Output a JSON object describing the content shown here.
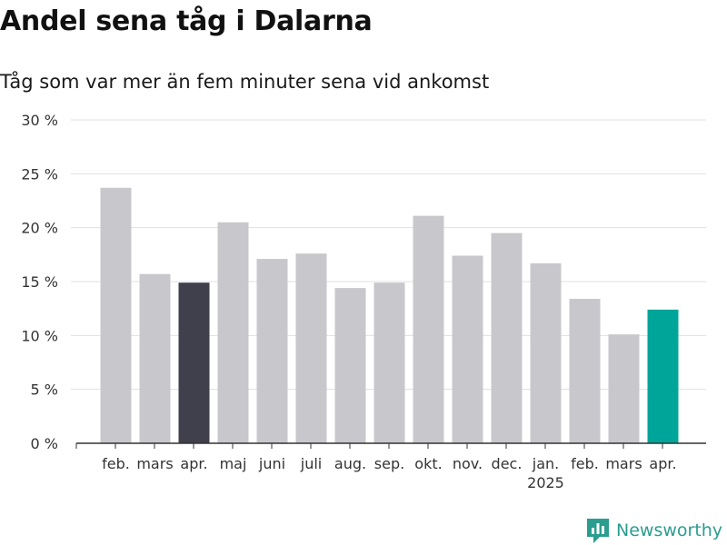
{
  "chart_data": {
    "type": "bar",
    "title": "Andel sena tåg i Dalarna",
    "subtitle": "Tåg som var mer än fem minuter sena vid ankomst",
    "categories": [
      "feb.",
      "mars",
      "apr.",
      "maj",
      "juni",
      "juli",
      "aug.",
      "sep.",
      "okt.",
      "nov.",
      "dec.",
      "jan.",
      "feb.",
      "mars",
      "apr."
    ],
    "year_labels": [
      "",
      "",
      "",
      "",
      "",
      "",
      "",
      "",
      "",
      "",
      "",
      "2025",
      "",
      "",
      ""
    ],
    "values": [
      23.7,
      15.7,
      14.9,
      20.5,
      17.1,
      17.6,
      14.4,
      14.9,
      21.1,
      17.4,
      19.5,
      16.7,
      13.4,
      10.1,
      12.4
    ],
    "highlight": [
      2,
      14
    ],
    "ylim": [
      0,
      30
    ],
    "yticks": [
      0,
      5,
      10,
      15,
      20,
      25,
      30
    ],
    "ytick_labels": [
      "0 %",
      "5 %",
      "10 %",
      "15 %",
      "20 %",
      "25 %",
      "30 %"
    ],
    "colors": {
      "default": "#c8c7cc",
      "previous_year": "#403f4c",
      "current": "#00a59a",
      "grid": "#e0e0e0",
      "axis": "#333333"
    }
  },
  "logo": {
    "text": "Newsworthy",
    "icon": "bar-chart-icon",
    "color": "#2a9d8f"
  }
}
